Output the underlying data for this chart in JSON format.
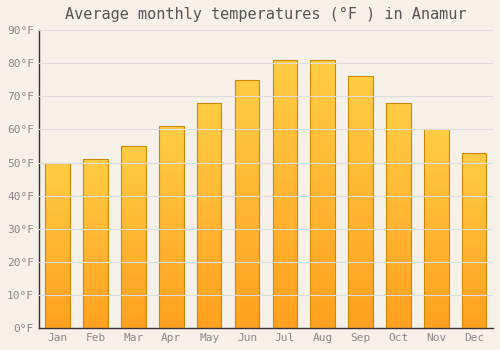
{
  "title": "Average monthly temperatures (°F ) in Anamur",
  "months": [
    "Jan",
    "Feb",
    "Mar",
    "Apr",
    "May",
    "Jun",
    "Jul",
    "Aug",
    "Sep",
    "Oct",
    "Nov",
    "Dec"
  ],
  "values": [
    50,
    51,
    55,
    61,
    68,
    75,
    81,
    81,
    76,
    68,
    60,
    53
  ],
  "bar_color_top": "#FFCC44",
  "bar_color_bottom": "#FFA020",
  "bar_edge_color": "#CC8800",
  "background_color": "#F5F0E8",
  "grid_color": "#DDDDDD",
  "ylim": [
    0,
    90
  ],
  "yticks": [
    0,
    10,
    20,
    30,
    40,
    50,
    60,
    70,
    80,
    90
  ],
  "tick_label_color": "#888888",
  "title_color": "#555555",
  "title_fontsize": 11,
  "tick_fontsize": 8,
  "font_family": "monospace"
}
